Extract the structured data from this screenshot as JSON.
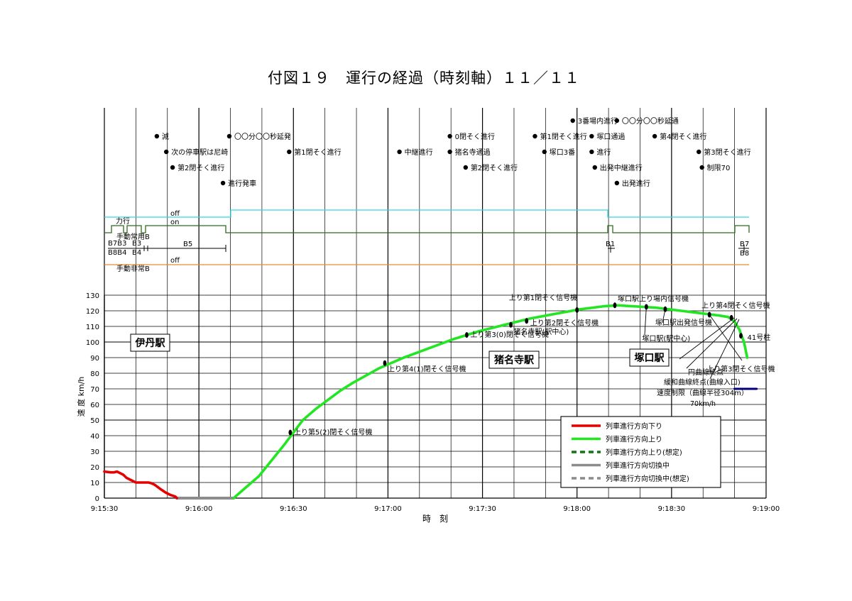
{
  "title": "付図１９　運行の経過（時刻軸）１１／１１",
  "chart_data": {
    "type": "line",
    "title": "付図１９　運行の経過（時刻軸）１１／１１",
    "xlabel": "時　刻",
    "ylabel": "速 度 km/h",
    "x_tick_labels": [
      "9:15:30",
      "9:16:00",
      "9:16:30",
      "9:17:00",
      "9:17:30",
      "9:18:00",
      "9:18:30",
      "9:19:00"
    ],
    "y_tick_labels": [
      "0",
      "10",
      "20",
      "30",
      "40",
      "50",
      "60",
      "70",
      "80",
      "90",
      "100",
      "110",
      "120",
      "130"
    ],
    "xlim_seconds_after_915": [
      30,
      240
    ],
    "ylim": [
      0,
      130
    ],
    "grid": true,
    "legend_position": "bottom-right",
    "series": [
      {
        "name": "列車進行方向下り",
        "color": "#e60000",
        "style": "solid",
        "x_seconds_after_915": [
          30,
          32,
          33,
          34,
          35,
          36,
          37,
          38,
          40,
          41,
          43,
          44,
          45,
          46,
          47,
          48,
          49.5,
          51,
          52.5,
          53
        ],
        "values": [
          17,
          16.5,
          16.5,
          17,
          16,
          15,
          13,
          12,
          10,
          10,
          10,
          10,
          9.5,
          8.5,
          7,
          5.5,
          3.5,
          2,
          1,
          0
        ]
      },
      {
        "name": "列車進行方向上り",
        "color": "#22e622",
        "style": "solid",
        "x_seconds_after_915": [
          71,
          75,
          79,
          83,
          87,
          90,
          93,
          97,
          101,
          105,
          109,
          113,
          117,
          121,
          125,
          129,
          133,
          137,
          141,
          145,
          149,
          153,
          157,
          161,
          165,
          169,
          173,
          177,
          181,
          185,
          189,
          193,
          197,
          201,
          205,
          209,
          213,
          217,
          221,
          225,
          228,
          230,
          231.5,
          233,
          234
        ],
        "values": [
          0,
          7,
          14,
          24,
          34,
          42,
          50,
          57,
          63,
          69,
          74,
          78.5,
          83,
          86.5,
          90,
          93,
          96,
          99,
          102,
          104.5,
          107,
          109,
          111,
          113,
          115,
          116.5,
          118,
          119.5,
          121,
          122,
          123,
          123.5,
          123,
          122.5,
          122,
          121,
          120,
          119,
          118,
          117,
          116,
          113,
          108,
          100,
          90
        ]
      },
      {
        "name": "列車進行方向切換中",
        "color": "#8c8c8c",
        "style": "solid",
        "x_seconds_after_915": [
          53,
          71
        ],
        "values": [
          0,
          0
        ]
      },
      {
        "name": "速度制限（曲線半径304m） 70km/h",
        "color": "#00007a",
        "style": "solid",
        "x_seconds_after_915": [
          230,
          237
        ],
        "values": [
          70,
          70
        ]
      }
    ],
    "legend": [
      {
        "label": "列車進行方向下り",
        "color": "#e60000",
        "style": "solid"
      },
      {
        "label": "列車進行方向上り",
        "color": "#22e622",
        "style": "solid"
      },
      {
        "label": "列車進行方向上り(想定)",
        "color": "#117711",
        "style": "dashed"
      },
      {
        "label": "列車進行方向切換中",
        "color": "#8c8c8c",
        "style": "solid"
      },
      {
        "label": "列車進行方向切換中(想定)",
        "color": "#8c8c8c",
        "style": "dashed"
      }
    ],
    "point_markers": [
      {
        "x_seconds_after_915": 89,
        "value": 42,
        "label": "上り第5(2)閉そく信号機"
      },
      {
        "x_seconds_after_915": 119,
        "value": 86.5,
        "label": "上り第4(1)閉そく信号機"
      },
      {
        "x_seconds_after_915": 145,
        "value": 104.5,
        "label": "上り第3(0)閉そく信号機"
      },
      {
        "x_seconds_after_915": 159,
        "value": 111,
        "label": "猪名寺駅(駅中心)"
      },
      {
        "x_seconds_after_915": 164,
        "value": 113.5,
        "label": "上り第2閉そく信号機"
      },
      {
        "x_seconds_after_915": 180,
        "value": 120.5,
        "label": "上り第1閉そく信号機"
      },
      {
        "x_seconds_after_915": 192,
        "value": 123.5,
        "label": "塚口駅上り場内信号機"
      },
      {
        "x_seconds_after_915": 202,
        "value": 122.5,
        "label": "塚口駅(駅中心)"
      },
      {
        "x_seconds_after_915": 208,
        "value": 121,
        "label": "塚口駅出発信号機"
      },
      {
        "x_seconds_after_915": 222,
        "value": 117.5,
        "label": "上り第3閉そく信号機"
      },
      {
        "x_seconds_after_915": 229,
        "value": 115.5,
        "label": "上り第4閉そく信号機"
      },
      {
        "x_seconds_after_915": 232,
        "value": 104,
        "label": "41号柱"
      }
    ],
    "curve_annotations": [
      "円曲線終点",
      "緩和曲線終点(曲線入口)",
      "速度制限（曲線半径304m）",
      "70km/h"
    ],
    "station_labels": [
      {
        "label": "伊丹駅"
      },
      {
        "label": "猪名寺駅"
      },
      {
        "label": "塚口駅"
      }
    ],
    "events": [
      {
        "label": "減",
        "x_seconds_after_915": 48,
        "row": 2
      },
      {
        "label": "次の停車駅は尼崎",
        "x_seconds_after_915": 51,
        "row": 3
      },
      {
        "label": "第2閉そく進行",
        "x_seconds_after_915": 53,
        "row": 4
      },
      {
        "label": "進行発車",
        "x_seconds_after_915": 69,
        "row": 5
      },
      {
        "label": "〇〇分〇〇秒延発",
        "x_seconds_after_915": 71,
        "row": 2
      },
      {
        "label": "第1閉そく進行",
        "x_seconds_after_915": 90,
        "row": 3
      },
      {
        "label": "中継進行",
        "x_seconds_after_915": 125,
        "row": 3
      },
      {
        "label": "0閉そく進行",
        "x_seconds_after_915": 141,
        "row": 2
      },
      {
        "label": "猪名寺通過",
        "x_seconds_after_915": 141,
        "row": 3
      },
      {
        "label": "第2閉そく進行",
        "x_seconds_after_915": 146,
        "row": 4
      },
      {
        "label": "第1閉そく進行",
        "x_seconds_after_915": 168,
        "row": 2
      },
      {
        "label": "塚口3番",
        "x_seconds_after_915": 171,
        "row": 3
      },
      {
        "label": "3番場内進行",
        "x_seconds_after_915": 180,
        "row": 1
      },
      {
        "label": "塚口通過",
        "x_seconds_after_915": 186,
        "row": 2
      },
      {
        "label": "進行",
        "x_seconds_after_915": 186,
        "row": 3
      },
      {
        "label": "出発中継進行",
        "x_seconds_after_915": 187,
        "row": 4
      },
      {
        "label": "〇〇分〇〇秒延通",
        "x_seconds_after_915": 194,
        "row": 1
      },
      {
        "label": "出発進行",
        "x_seconds_after_915": 194,
        "row": 5
      },
      {
        "label": "第4閉そく進行",
        "x_seconds_after_915": 206,
        "row": 2
      },
      {
        "label": "第3閉そく進行",
        "x_seconds_after_915": 220,
        "row": 3
      },
      {
        "label": "制限70",
        "x_seconds_after_915": 221,
        "row": 4
      }
    ],
    "control_labels": {
      "power": "力行",
      "service_brake": "手動常用B",
      "emergency_brake": "手動非常B",
      "off": "off",
      "on": "on",
      "notch_labels": [
        "B7B3",
        "B3",
        "B8B4",
        "B4",
        "B5",
        "B1",
        "B7",
        "B8"
      ]
    }
  }
}
